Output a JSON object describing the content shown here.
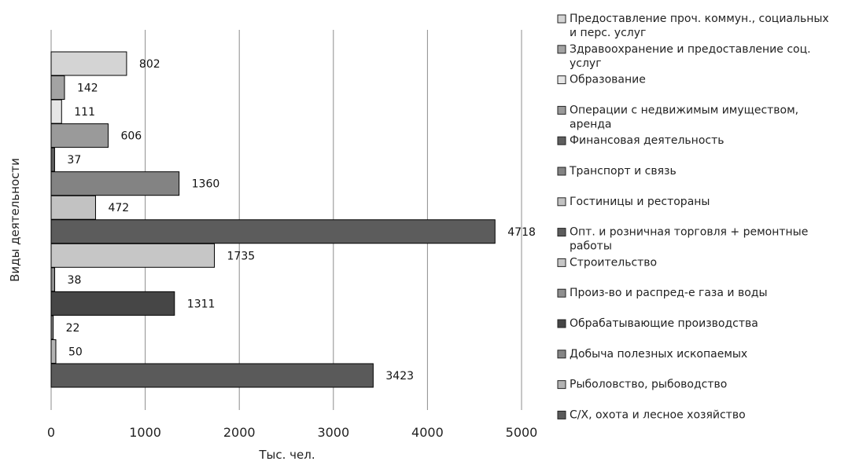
{
  "chart_data": {
    "type": "bar",
    "orientation": "horizontal",
    "title": "",
    "xlabel": "Тыс. чел.",
    "ylabel": "Виды деятельности",
    "xlim": [
      0,
      5000
    ],
    "xticks": [
      "0",
      "1000",
      "2000",
      "3000",
      "4000",
      "5000"
    ],
    "grid": "vertical",
    "legend_position": "right",
    "series": [
      {
        "name": "С/Х, охота и лесное хозяйство",
        "value": 3423,
        "color": "#5a5a5a"
      },
      {
        "name": "Рыболовство, рыбоводство",
        "value": 50,
        "color": "#b3b3b3"
      },
      {
        "name": "Добыча полезных ископаемых",
        "value": 22,
        "color": "#858585"
      },
      {
        "name": "Обрабатывающие производства",
        "value": 1311,
        "color": "#464646"
      },
      {
        "name": "Произ-во и распред-е газа и воды",
        "value": 38,
        "color": "#8f8f8f"
      },
      {
        "name": "Строительство",
        "value": 1735,
        "color": "#c6c6c6"
      },
      {
        "name": "Опт. и розничная торговля + ремонтные работы",
        "value": 4718,
        "color": "#5c5c5c"
      },
      {
        "name": "Гостиницы и рестораны",
        "value": 472,
        "color": "#c2c2c2"
      },
      {
        "name": "Транспорт и связь",
        "value": 1360,
        "color": "#838383"
      },
      {
        "name": "Финансовая деятельность",
        "value": 37,
        "color": "#5e5e5e"
      },
      {
        "name": "Операции с недвижимым имуществом, аренда",
        "value": 606,
        "color": "#9a9a9a"
      },
      {
        "name": "Образование",
        "value": 111,
        "color": "#e6e6e6"
      },
      {
        "name": "Здравоохранение и предоставление соц. услуг",
        "value": 142,
        "color": "#a3a3a3"
      },
      {
        "name": "Предоставление проч. коммун., социальных и перс. услуг",
        "value": 802,
        "color": "#d4d4d4"
      }
    ],
    "legend": [
      {
        "lines": [
          "Предоставление проч. коммун., социальных",
          "и перс. услуг"
        ],
        "color": "#d4d4d4"
      },
      {
        "lines": [
          "Здравоохранение и предоставление соц.",
          "услуг"
        ],
        "color": "#a3a3a3"
      },
      {
        "lines": [
          "Образование"
        ],
        "color": "#e6e6e6"
      },
      {
        "lines": [
          "Операции с недвижимым имуществом,",
          "аренда"
        ],
        "color": "#9a9a9a"
      },
      {
        "lines": [
          "Финансовая деятельность"
        ],
        "color": "#5e5e5e"
      },
      {
        "lines": [
          "Транспорт и связь"
        ],
        "color": "#838383"
      },
      {
        "lines": [
          "Гостиницы и рестораны"
        ],
        "color": "#c2c2c2"
      },
      {
        "lines": [
          "Опт. и розничная торговля + ремонтные",
          "работы"
        ],
        "color": "#5c5c5c"
      },
      {
        "lines": [
          "Строительство"
        ],
        "color": "#c6c6c6"
      },
      {
        "lines": [
          "Произ-во и распред-е газа и воды"
        ],
        "color": "#8f8f8f"
      },
      {
        "lines": [
          "Обрабатывающие производства"
        ],
        "color": "#464646"
      },
      {
        "lines": [
          "Добыча полезных ископаемых"
        ],
        "color": "#858585"
      },
      {
        "lines": [
          "Рыболовство, рыбоводство"
        ],
        "color": "#b3b3b3"
      },
      {
        "lines": [
          "С/Х, охота и лесное хозяйство"
        ],
        "color": "#5a5a5a"
      }
    ]
  }
}
